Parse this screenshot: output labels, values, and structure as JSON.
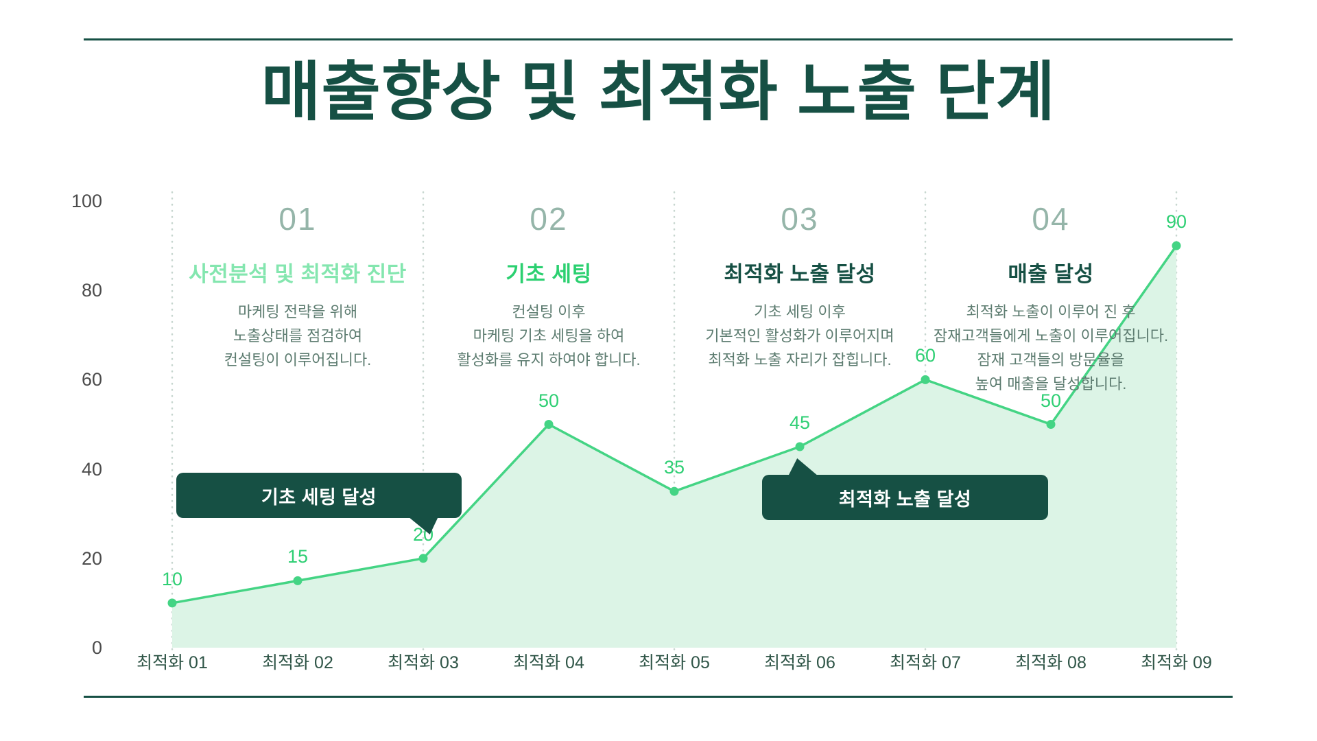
{
  "title": "매출향상 및 최적화 노출 단계",
  "stages": [
    {
      "number": "01",
      "title": "사전분석 및 최적화 진단",
      "desc_lines": [
        "마케팅 전략을 위해",
        "노출상태를 점검하여",
        "컨설팅이 이루어집니다."
      ]
    },
    {
      "number": "02",
      "title": "기초 세팅",
      "desc_lines": [
        "컨설팅 이후",
        "마케팅 기초 세팅을 하여",
        "활성화를 유지 하여야 합니다."
      ]
    },
    {
      "number": "03",
      "title": "최적화 노출 달성",
      "desc_lines": [
        "기초 세팅 이후",
        "기본적인 활성화가 이루어지며",
        "최적화 노출 자리가 잡힙니다."
      ]
    },
    {
      "number": "04",
      "title": "매출 달성",
      "desc_lines": [
        "최적화 노출이 이루어 진 후",
        "잠재고객들에게 노출이 이루어집니다.",
        "잠재 고객들의 방문율을",
        "높여 매출을 달성합니다."
      ]
    }
  ],
  "callouts": [
    {
      "label": "기초 세팅 달성"
    },
    {
      "label": "최적화 노출 달성"
    }
  ],
  "chart_data": {
    "type": "area",
    "title": "매출향상 및 최적화 노출 단계",
    "categories": [
      "최적화 01",
      "최적화 02",
      "최적화 03",
      "최적화 04",
      "최적화 05",
      "최적화 06",
      "최적화 07",
      "최적화 08",
      "최적화 09"
    ],
    "values": [
      10,
      15,
      20,
      50,
      35,
      45,
      60,
      50,
      90
    ],
    "y_ticks": [
      0,
      20,
      40,
      60,
      80,
      100
    ],
    "ylim": [
      0,
      100
    ],
    "xlabel": "",
    "ylabel": "",
    "legend": "none",
    "grid": "vertical dotted gridlines only",
    "gridlines_at": [
      "최적화 01",
      "최적화 03",
      "최적화 05",
      "최적화 07",
      "최적화 09"
    ],
    "line_color": "#44d484",
    "point_color": "#44d484",
    "area_color": "#dcf4e6",
    "value_label_color": "#2fcf74"
  },
  "colors": {
    "dark_green": "#165044",
    "mint": "#84e6af",
    "bright_green": "#2bd070",
    "stage_number_gray": "#95b5a9",
    "description_text": "#5d7c70",
    "y_axis_text": "#4c4c4c",
    "x_axis_text": "#2f5547",
    "callout_background": "#165044",
    "callout_text": "#ffffff",
    "gridline": "#c7d6cf"
  }
}
